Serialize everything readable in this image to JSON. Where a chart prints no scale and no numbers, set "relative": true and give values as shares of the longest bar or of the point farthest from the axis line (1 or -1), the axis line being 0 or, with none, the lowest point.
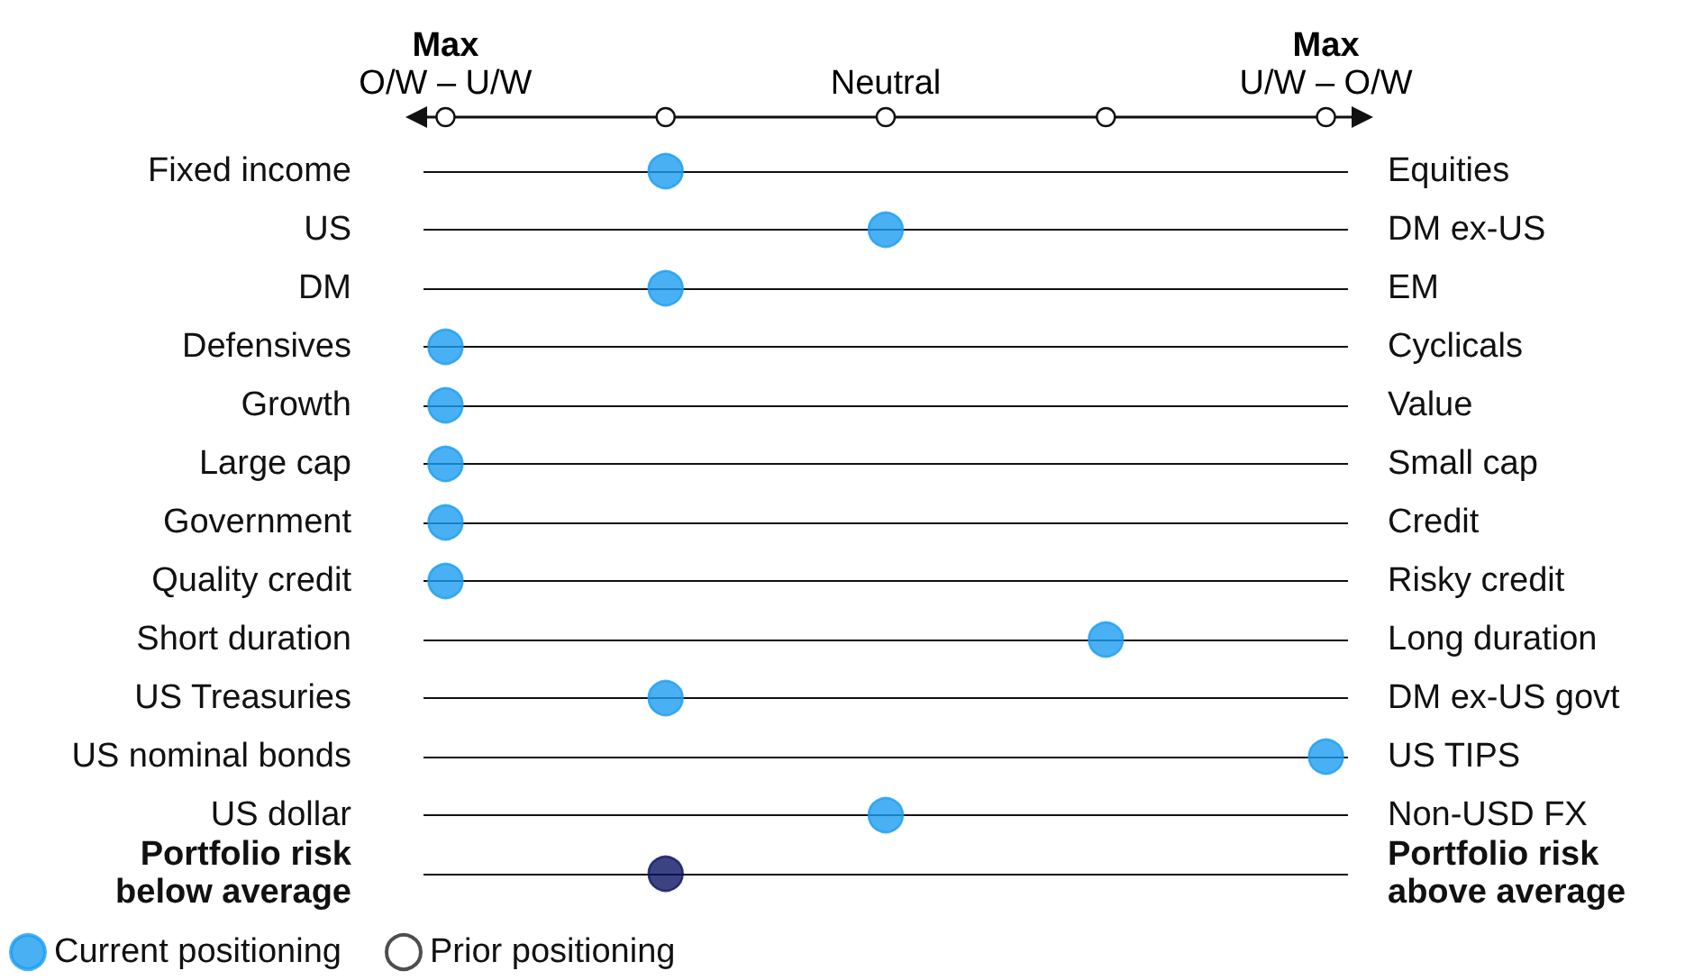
{
  "chart_data": {
    "type": "scatter",
    "categories": [
      "Fixed income",
      "US",
      "DM",
      "Defensives",
      "Growth",
      "Large cap",
      "Government",
      "Quality credit",
      "Short duration",
      "US Treasuries",
      "US nominal bonds",
      "US dollar",
      "Portfolio risk\nbelow average"
    ],
    "y2_categories": [
      "Equities",
      "DM ex-US",
      "EM",
      "Cyclicals",
      "Value",
      "Small cap",
      "Credit",
      "Risky credit",
      "Long duration",
      "DM ex-US govt",
      "US TIPS",
      "Non-USD FX",
      "Portfolio risk\nabove average"
    ],
    "series": [
      {
        "name": "Current positioning",
        "color": "#1a9cf0",
        "colors": [
          "#1a9cf0",
          "#1a9cf0",
          "#1a9cf0",
          "#1a9cf0",
          "#1a9cf0",
          "#1a9cf0",
          "#1a9cf0",
          "#1a9cf0",
          "#1a9cf0",
          "#1a9cf0",
          "#1a9cf0",
          "#1a9cf0",
          "#0b1464"
        ],
        "values": [
          0.25,
          0.5,
          0.25,
          0,
          0,
          0,
          0,
          0,
          0.75,
          0.25,
          1,
          0.5,
          0.25
        ]
      },
      {
        "name": "Prior positioning",
        "color": "#ffffff",
        "values": [
          null,
          null,
          null,
          null,
          null,
          null,
          null,
          null,
          null,
          null,
          null,
          null,
          null
        ]
      }
    ],
    "relative": true,
    "annotations": [
      "Max\nO/W – U/W",
      "Neutral",
      "Max\nU/W – O/W"
    ],
    "grid": "y",
    "legend": "bottom left",
    "marker": "circle",
    "orientation": "horizontal"
  }
}
